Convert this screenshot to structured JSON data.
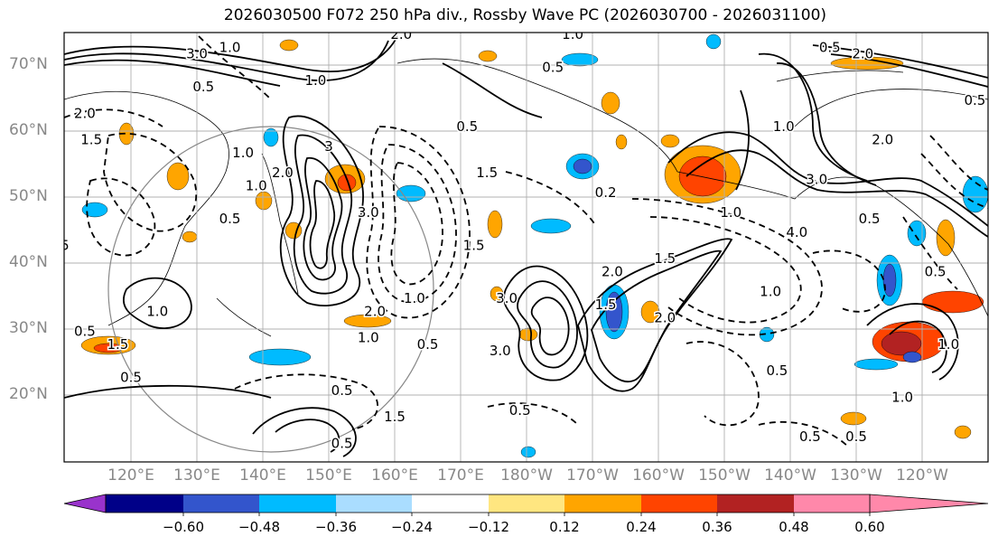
{
  "title": "2026030500 F072 250 hPa div., Rossby Wave PC (2026030700 - 2026031100)",
  "lat_labels": [
    "70°N",
    "60°N",
    "50°N",
    "40°N",
    "30°N",
    "20°N"
  ],
  "lon_labels": [
    "120°E",
    "130°E",
    "140°E",
    "150°E",
    "160°E",
    "170°E",
    "180°W",
    "170°W",
    "160°W",
    "150°W",
    "140°W",
    "130°W",
    "120°W"
  ],
  "colorbar": {
    "ticks": [
      "−0.60",
      "−0.48",
      "−0.36",
      "−0.24",
      "−0.12",
      "0.12",
      "0.24",
      "0.36",
      "0.48",
      "0.60"
    ],
    "colors": [
      "#9933cc",
      "#000088",
      "#3355cc",
      "#00bbff",
      "#aaddff",
      "#ffffff",
      "#ffe680",
      "#ffa500",
      "#ff4400",
      "#b22222",
      "#ff88aa"
    ]
  },
  "contour_labels": [
    {
      "text": "3.0",
      "lon": 130,
      "lat": 71
    },
    {
      "text": "1.0",
      "lon": 135,
      "lat": 72
    },
    {
      "text": "2.0",
      "lon": 161,
      "lat": 74
    },
    {
      "text": "0.5",
      "lon": 131,
      "lat": 66
    },
    {
      "text": "1.0",
      "lon": 148,
      "lat": 67
    },
    {
      "text": "0.5",
      "lon": 184,
      "lat": 69
    },
    {
      "text": "1.0",
      "lon": 187,
      "lat": 74
    },
    {
      "text": "2.0",
      "lon": 113,
      "lat": 62
    },
    {
      "text": "1.5",
      "lon": 114,
      "lat": 58
    },
    {
      "text": "1.0",
      "lon": 137,
      "lat": 56
    },
    {
      "text": "2.0",
      "lon": 143,
      "lat": 53
    },
    {
      "text": "3",
      "lon": 150,
      "lat": 57
    },
    {
      "text": "1.0",
      "lon": 139,
      "lat": 51
    },
    {
      "text": "0.5",
      "lon": 171,
      "lat": 60
    },
    {
      "text": "1.5",
      "lon": 174,
      "lat": 53
    },
    {
      "text": "3.0",
      "lon": 156,
      "lat": 47
    },
    {
      "text": "0.5",
      "lon": 106,
      "lat": 44
    },
    {
      "text": "0.5",
      "lon": 109,
      "lat": 42
    },
    {
      "text": "0.5",
      "lon": 135,
      "lat": 46
    },
    {
      "text": "1.5",
      "lon": 172,
      "lat": 42
    },
    {
      "text": "2.0",
      "lon": 157,
      "lat": 32
    },
    {
      "text": "1.0",
      "lon": 163,
      "lat": 34
    },
    {
      "text": "3.0",
      "lon": 177,
      "lat": 34
    },
    {
      "text": "1.0",
      "lon": 124,
      "lat": 32
    },
    {
      "text": "1.0",
      "lon": 156,
      "lat": 28
    },
    {
      "text": "0.5",
      "lon": 165,
      "lat": 27
    },
    {
      "text": "3.0",
      "lon": 176,
      "lat": 26
    },
    {
      "text": "0.5",
      "lon": 113,
      "lat": 29
    },
    {
      "text": "1.5",
      "lon": 118,
      "lat": 27
    },
    {
      "text": "0.5",
      "lon": 120,
      "lat": 22
    },
    {
      "text": "0.5",
      "lon": 152,
      "lat": 20
    },
    {
      "text": "1.5",
      "lon": 160,
      "lat": 16
    },
    {
      "text": "0.5",
      "lon": 152,
      "lat": 12
    },
    {
      "text": "0.2",
      "lon": 192,
      "lat": 50
    },
    {
      "text": "1.0",
      "lon": 211,
      "lat": 47
    },
    {
      "text": "2.0",
      "lon": 193,
      "lat": 38
    },
    {
      "text": "1.5",
      "lon": 192,
      "lat": 33
    },
    {
      "text": "1.5",
      "lon": 201,
      "lat": 40
    },
    {
      "text": "2.0",
      "lon": 201,
      "lat": 31
    },
    {
      "text": "1.0",
      "lon": 217,
      "lat": 35
    },
    {
      "text": "0.5",
      "lon": 218,
      "lat": 23
    },
    {
      "text": "0.5",
      "lon": 179,
      "lat": 17
    },
    {
      "text": "3.0",
      "lon": 224,
      "lat": 52
    },
    {
      "text": "2.0",
      "lon": 234,
      "lat": 58
    },
    {
      "text": "4.0",
      "lon": 221,
      "lat": 44
    },
    {
      "text": "0.5",
      "lon": 232,
      "lat": 46
    },
    {
      "text": "0.5",
      "lon": 242,
      "lat": 38
    },
    {
      "text": "1.0",
      "lon": 219,
      "lat": 60
    },
    {
      "text": "2.0",
      "lon": 231,
      "lat": 71
    },
    {
      "text": "0.5",
      "lon": 226,
      "lat": 72
    },
    {
      "text": "0.5",
      "lon": 248,
      "lat": 64
    },
    {
      "text": "0.5",
      "lon": 252,
      "lat": 70
    },
    {
      "text": "1.0",
      "lon": 237,
      "lat": 19
    },
    {
      "text": "0.5",
      "lon": 223,
      "lat": 13
    },
    {
      "text": "0.5",
      "lon": 230,
      "lat": 13
    },
    {
      "text": "1.0",
      "lon": 244,
      "lat": 27
    }
  ]
}
